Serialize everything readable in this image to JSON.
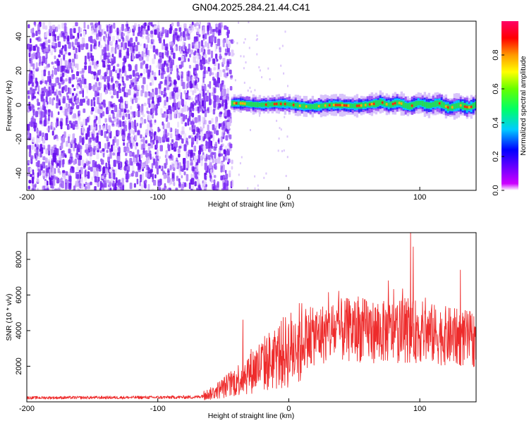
{
  "title": "GN04.2025.284.21.44.C41",
  "chart_data": [
    {
      "type": "heatmap",
      "xlabel": "Height of straight line (km)",
      "ylabel": "Frequency (Hz)",
      "xlim": [
        -200,
        143
      ],
      "ylim": [
        -50,
        49
      ],
      "xticks": [
        "-200",
        "-100",
        "0",
        "100"
      ],
      "yticks": [
        "-40",
        "-20",
        "0",
        "20",
        "40"
      ],
      "colorbar": {
        "label": "Normalized spectral amplitude",
        "range": [
          0.0,
          1.0
        ],
        "ticks": [
          "0.0",
          "0.2",
          "0.4",
          "0.6",
          "0.8"
        ],
        "colors": [
          "#ffffff",
          "#cc00ff",
          "#6600ff",
          "#0000ff",
          "#00ccff",
          "#00ff66",
          "#66ff00",
          "#ffff00",
          "#ff9900",
          "#ff0000",
          "#ff0066"
        ]
      },
      "regions": {
        "noise_x_range": [
          -200,
          -44
        ],
        "noise_color": "#7a22f0",
        "signal_x_range": [
          -44,
          143
        ],
        "signal_center_freq": 0,
        "signal_core_color": "#ff2a00",
        "signal_band_color": "#22dd55"
      },
      "grid": false
    },
    {
      "type": "line",
      "xlabel": "Height of straight line (km)",
      "ylabel": "SNR (10 * v/v)",
      "xlim": [
        -200,
        143
      ],
      "ylim": [
        0,
        9500
      ],
      "xticks": [
        "-200",
        "-100",
        "0",
        "100"
      ],
      "yticks": [
        "2000",
        "4000",
        "6000",
        "8000"
      ],
      "line_color": "#ee2b2b",
      "envelope": {
        "x": [
          -200,
          -150,
          -100,
          -70,
          -60,
          -50,
          -40,
          -30,
          -20,
          -10,
          0,
          10,
          20,
          30,
          40,
          50,
          60,
          70,
          80,
          90,
          100,
          110,
          120,
          130,
          143
        ],
        "y": [
          230,
          240,
          250,
          270,
          450,
          800,
          1200,
          1700,
          2100,
          2500,
          2900,
          3300,
          3700,
          3900,
          4000,
          4050,
          4000,
          3900,
          3950,
          4000,
          3950,
          3800,
          3700,
          3600,
          3500
        ]
      },
      "peaks": [
        {
          "x": -35,
          "y": 4600
        },
        {
          "x": 13,
          "y": 5200
        },
        {
          "x": 53,
          "y": 5900
        },
        {
          "x": 76,
          "y": 6800
        },
        {
          "x": 93,
          "y": 9500
        },
        {
          "x": 95,
          "y": 8700
        },
        {
          "x": 131,
          "y": 7400
        }
      ],
      "grid": false
    }
  ]
}
